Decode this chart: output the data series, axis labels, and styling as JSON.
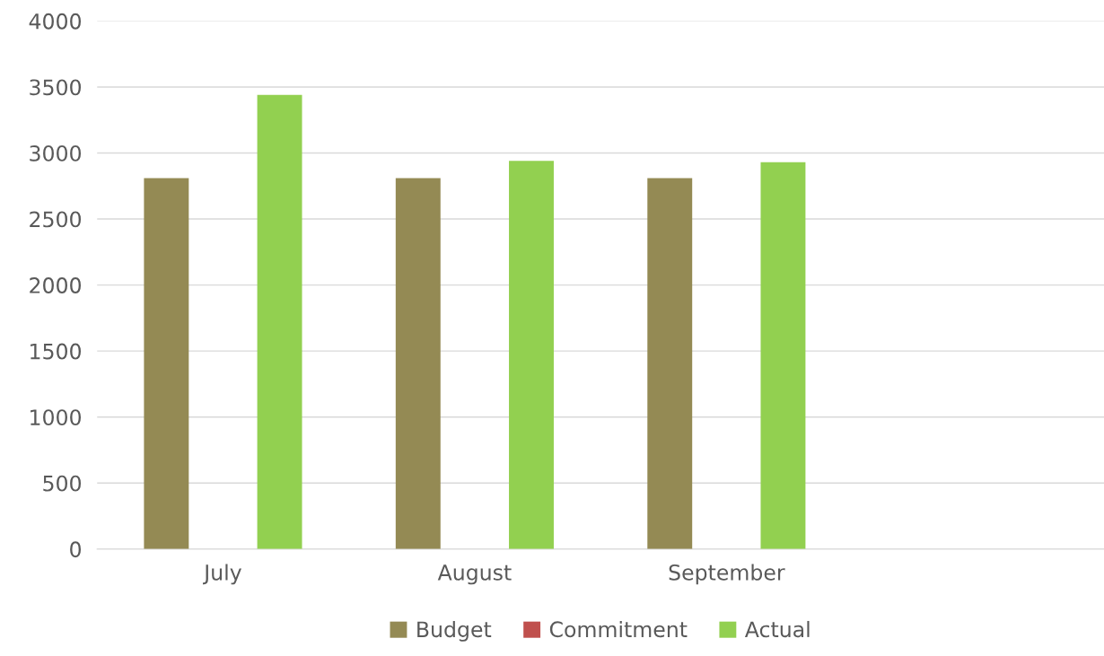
{
  "chart_data": {
    "type": "bar",
    "categories": [
      "July",
      "August",
      "September",
      null
    ],
    "series": [
      {
        "name": "Budget",
        "color": "#948a54",
        "values": [
          2810,
          2810,
          2810,
          null
        ]
      },
      {
        "name": "Commitment",
        "color": "#c0504d",
        "values": [
          null,
          null,
          null,
          null
        ]
      },
      {
        "name": "Actual",
        "color": "#92d050",
        "values": [
          3440,
          2940,
          2930,
          null
        ]
      }
    ],
    "ylim": [
      0,
      4000
    ],
    "yticks": [
      0,
      500,
      1000,
      1500,
      2000,
      2500,
      3000,
      3500,
      4000
    ],
    "grid": "y",
    "legend": "bottom"
  }
}
